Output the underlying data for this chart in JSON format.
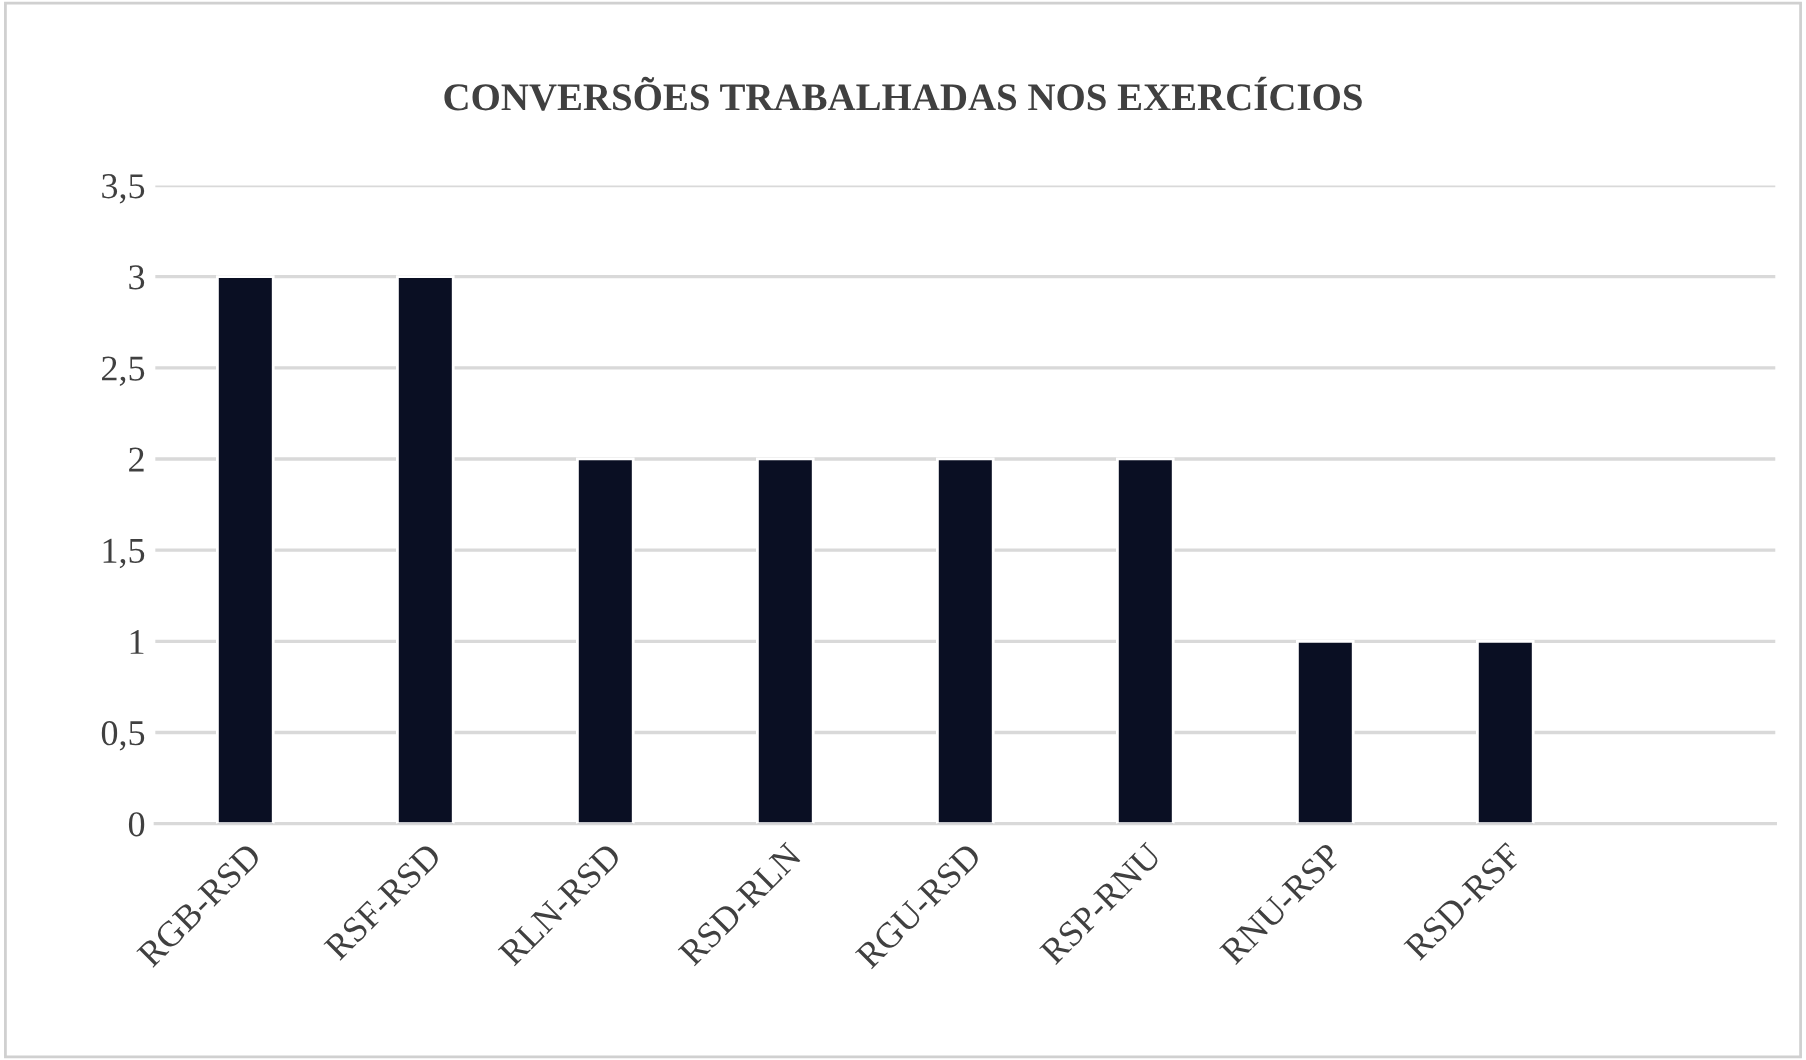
{
  "chart_data": {
    "type": "bar",
    "title": "CONVERSÕES TRABALHADAS NOS EXERCÍCIOS",
    "categories": [
      "RGB-RSD",
      "RSF-RSD",
      "RLN-RSD",
      "RSD-RLN",
      "RGU-RSD",
      "RSP-RNU",
      "RNU-RSP",
      "RSD-RSF",
      null
    ],
    "values": [
      3,
      3,
      2,
      2,
      2,
      2,
      1,
      1,
      null
    ],
    "color": "#0a0f23",
    "ylim": [
      0,
      3.5
    ],
    "yticks": [
      0,
      {
        "value": 0.5,
        "label": "0,5"
      },
      1,
      {
        "value": 1.5,
        "label": "1,5"
      },
      2,
      {
        "value": 2.5,
        "label": "2,5"
      },
      3,
      {
        "value": 3.5,
        "label": "3,5"
      }
    ],
    "grid": "y",
    "legend": false
  }
}
